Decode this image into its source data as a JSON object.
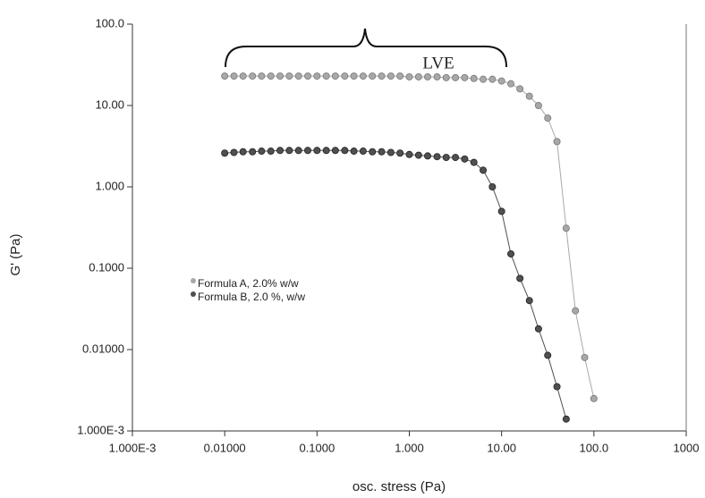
{
  "chart_data": {
    "type": "line",
    "xlabel": "osc. stress (Pa)",
    "ylabel": "G' (Pa)",
    "annotation": "LVE",
    "xscale": "log",
    "yscale": "log",
    "xlim": [
      0.001,
      1000
    ],
    "ylim": [
      0.001,
      100
    ],
    "xticks": [
      {
        "value": 0.001,
        "label": "1.000E-3"
      },
      {
        "value": 0.01,
        "label": "0.01000"
      },
      {
        "value": 0.1,
        "label": "0.1000"
      },
      {
        "value": 1,
        "label": "1.000"
      },
      {
        "value": 10,
        "label": "10.00"
      },
      {
        "value": 100,
        "label": "100.0"
      },
      1000
    ],
    "yticks": [
      {
        "value": 0.001,
        "label": "1.000E-3"
      },
      {
        "value": 0.01,
        "label": "0.01000"
      },
      {
        "value": 0.1,
        "label": "0.1000"
      },
      {
        "value": 1,
        "label": "1.000"
      },
      {
        "value": 10,
        "label": "10.00"
      },
      {
        "value": 100,
        "label": "100.0"
      }
    ],
    "x": [
      0.01,
      0.0126,
      0.0158,
      0.02,
      0.0251,
      0.0316,
      0.0398,
      0.0501,
      0.0631,
      0.0794,
      0.1,
      0.126,
      0.158,
      0.2,
      0.251,
      0.316,
      0.398,
      0.501,
      0.631,
      0.794,
      1,
      1.26,
      1.58,
      2,
      2.51,
      3.16,
      3.98,
      5.01,
      6.31,
      7.94,
      10,
      12.6,
      15.8,
      20,
      25.1,
      31.6,
      39.8,
      50.1,
      63.1,
      79.4,
      100
    ],
    "series": [
      {
        "name": "Formula A, 2.0% w/w",
        "color": "#a8a8a8",
        "values": [
          23,
          23,
          23,
          23,
          23,
          23,
          23,
          23,
          23,
          23,
          23,
          23,
          23,
          23,
          23,
          23,
          23,
          23,
          23,
          23,
          22.5,
          22.5,
          22.5,
          22.5,
          22,
          22,
          22,
          21.5,
          21,
          21,
          20,
          18.5,
          16,
          13,
          10,
          7,
          3.6,
          0.31,
          0.03,
          0.008,
          0.0025
        ]
      },
      {
        "name": "Formula B, 2.0 %, w/w",
        "color": "#505050",
        "values": [
          2.6,
          2.65,
          2.7,
          2.7,
          2.75,
          2.75,
          2.8,
          2.8,
          2.8,
          2.8,
          2.8,
          2.8,
          2.8,
          2.8,
          2.75,
          2.75,
          2.7,
          2.7,
          2.65,
          2.6,
          2.5,
          2.45,
          2.4,
          2.35,
          2.3,
          2.3,
          2.2,
          2.0,
          1.6,
          1.0,
          0.5,
          0.15,
          0.075,
          0.04,
          0.018,
          0.0085,
          0.0035,
          0.0014,
          null,
          null,
          null
        ]
      }
    ]
  }
}
